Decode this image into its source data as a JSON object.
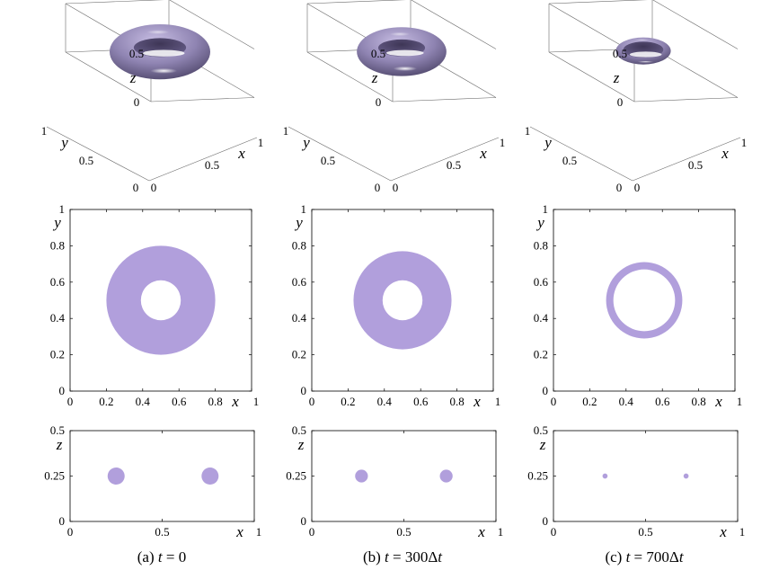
{
  "chart_data": [
    {
      "type": "surface3d",
      "panel": "a",
      "row": "3d",
      "torus": {
        "center": [
          0.5,
          0.5,
          0.25
        ],
        "major_radius": 0.37,
        "minor_radius": 0.13
      },
      "xlabel": "x",
      "ylabel": "y",
      "zlabel": "z",
      "xticks": [
        "0",
        "0.5",
        "1"
      ],
      "yticks": [
        "0",
        "0.5",
        "1"
      ],
      "zticks": [
        "0",
        "0.5"
      ],
      "color": "#9d92bd"
    },
    {
      "type": "surface3d",
      "panel": "b",
      "row": "3d",
      "torus": {
        "center": [
          0.5,
          0.5,
          0.25
        ],
        "major_radius": 0.33,
        "minor_radius": 0.115
      },
      "xlabel": "x",
      "ylabel": "y",
      "zlabel": "z",
      "xticks": [
        "0",
        "0.5",
        "1"
      ],
      "yticks": [
        "0",
        "0.5",
        "1"
      ],
      "zticks": [
        "0",
        "0.5"
      ],
      "color": "#9d92bd"
    },
    {
      "type": "surface3d",
      "panel": "c",
      "row": "3d",
      "torus": {
        "center": [
          0.5,
          0.5,
          0.25
        ],
        "major_radius": 0.23,
        "minor_radius": 0.04
      },
      "xlabel": "x",
      "ylabel": "y",
      "zlabel": "z",
      "xticks": [
        "0",
        "0.5",
        "1"
      ],
      "yticks": [
        "0",
        "0.5",
        "1"
      ],
      "zticks": [
        "0",
        "0.5"
      ],
      "color": "#9d92bd"
    },
    {
      "type": "annulus",
      "panel": "a",
      "row": "xy",
      "center": [
        0.5,
        0.5
      ],
      "inner_radius": 0.11,
      "outer_radius": 0.3,
      "xlabel": "x",
      "ylabel": "y",
      "xlim": [
        0,
        1
      ],
      "ylim": [
        0,
        1
      ],
      "xticks": [
        "0",
        "0.2",
        "0.4",
        "0.6",
        "0.8",
        "1"
      ],
      "yticks": [
        "0",
        "0.2",
        "0.4",
        "0.6",
        "0.8",
        "1"
      ],
      "color": "#b19fdc"
    },
    {
      "type": "annulus",
      "panel": "b",
      "row": "xy",
      "center": [
        0.5,
        0.5
      ],
      "inner_radius": 0.11,
      "outer_radius": 0.27,
      "xlabel": "x",
      "ylabel": "y",
      "xlim": [
        0,
        1
      ],
      "ylim": [
        0,
        1
      ],
      "xticks": [
        "0",
        "0.2",
        "0.4",
        "0.6",
        "0.8",
        "1"
      ],
      "yticks": [
        "0",
        "0.2",
        "0.4",
        "0.6",
        "0.8",
        "1"
      ],
      "color": "#b19fdc"
    },
    {
      "type": "annulus",
      "panel": "c",
      "row": "xy",
      "center": [
        0.5,
        0.5
      ],
      "inner_radius": 0.17,
      "outer_radius": 0.21,
      "xlabel": "x",
      "ylabel": "y",
      "xlim": [
        0,
        1
      ],
      "ylim": [
        0,
        1
      ],
      "xticks": [
        "0",
        "0.2",
        "0.4",
        "0.6",
        "0.8",
        "1"
      ],
      "yticks": [
        "0",
        "0.2",
        "0.4",
        "0.6",
        "0.8",
        "1"
      ],
      "color": "#b19fdc"
    },
    {
      "type": "cross-section",
      "panel": "a",
      "row": "xz",
      "discs": [
        {
          "x": 0.25,
          "z": 0.25,
          "r": 0.1
        },
        {
          "x": 0.76,
          "z": 0.25,
          "r": 0.1
        }
      ],
      "xlabel": "x",
      "ylabel": "z",
      "xlim": [
        0,
        1
      ],
      "ylim": [
        0,
        0.5
      ],
      "xticks": [
        "0",
        "0.5",
        "1"
      ],
      "yticks": [
        "0",
        "0.25",
        "0.5"
      ],
      "color": "#b19fdc"
    },
    {
      "type": "cross-section",
      "panel": "b",
      "row": "xz",
      "discs": [
        {
          "x": 0.27,
          "z": 0.25,
          "r": 0.075
        },
        {
          "x": 0.73,
          "z": 0.25,
          "r": 0.075
        }
      ],
      "xlabel": "x",
      "ylabel": "z",
      "xlim": [
        0,
        1
      ],
      "ylim": [
        0,
        0.5
      ],
      "xticks": [
        "0",
        "0.5",
        "1"
      ],
      "yticks": [
        "0",
        "0.25",
        "0.5"
      ],
      "color": "#b19fdc"
    },
    {
      "type": "cross-section",
      "panel": "c",
      "row": "xz",
      "discs": [
        {
          "x": 0.28,
          "z": 0.25,
          "r": 0.03
        },
        {
          "x": 0.72,
          "z": 0.25,
          "r": 0.03
        }
      ],
      "xlabel": "x",
      "ylabel": "z",
      "xlim": [
        0,
        1
      ],
      "ylim": [
        0,
        0.5
      ],
      "xticks": [
        "0",
        "0.5",
        "1"
      ],
      "yticks": [
        "0",
        "0.25",
        "0.5"
      ],
      "color": "#b19fdc"
    }
  ],
  "captions": {
    "a": {
      "label": "(a)",
      "t": "t",
      "rest": "= 0"
    },
    "b": {
      "label": "(b)",
      "t": "t",
      "rest": "= 300Δ",
      "t2": "t"
    },
    "c": {
      "label": "(c)",
      "t": "t",
      "rest": "= 700Δ",
      "t2": "t"
    }
  }
}
